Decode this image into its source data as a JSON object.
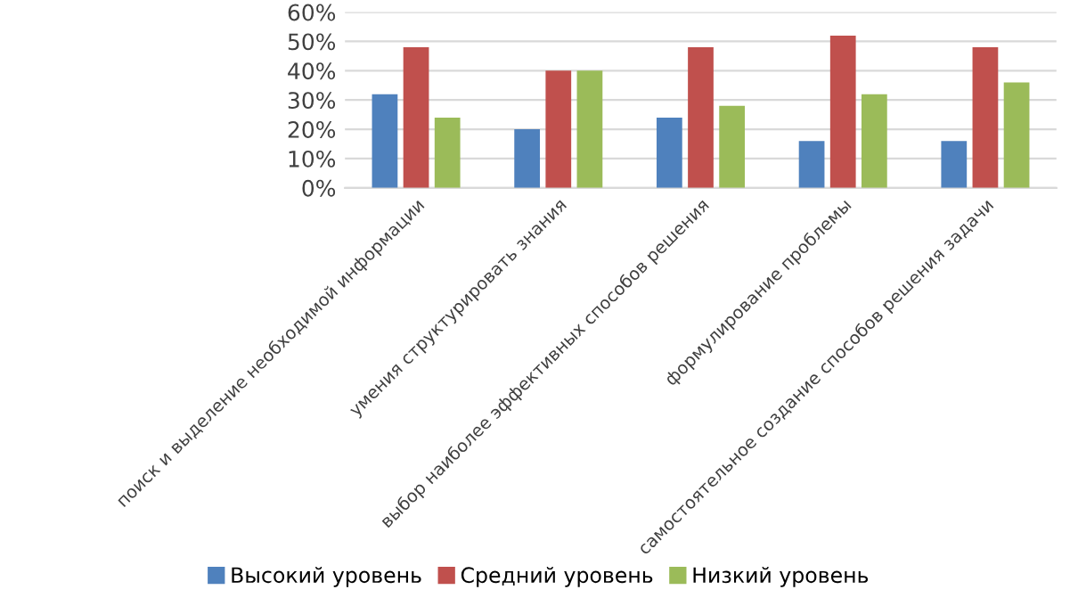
{
  "chart_data": {
    "type": "bar",
    "categories": [
      "поиск и выделение необходимой информации",
      "умения структурировать знания",
      "выбор наиболее эффективных способов решения",
      "формулирование проблемы",
      "самостоятельное создание способов решения задачи"
    ],
    "series": [
      {
        "name": "Высокий уровень",
        "color": "#4f81bd",
        "values": [
          32,
          20,
          24,
          16,
          16
        ]
      },
      {
        "name": "Средний уровень",
        "color": "#c0504d",
        "values": [
          48,
          40,
          48,
          52,
          48
        ]
      },
      {
        "name": "Низкий уровень",
        "color": "#9bbb59",
        "values": [
          24,
          40,
          28,
          32,
          36
        ]
      }
    ],
    "ylim": [
      0,
      60
    ],
    "yticks": [
      {
        "value": 0,
        "label": "0%"
      },
      {
        "value": 10,
        "label": "10%"
      },
      {
        "value": 20,
        "label": "20%"
      },
      {
        "value": 30,
        "label": "30%"
      },
      {
        "value": 40,
        "label": "40%"
      },
      {
        "value": 50,
        "label": "50%"
      },
      {
        "value": 60,
        "label": "60%"
      }
    ],
    "grid": "y",
    "legend": "bottom"
  }
}
